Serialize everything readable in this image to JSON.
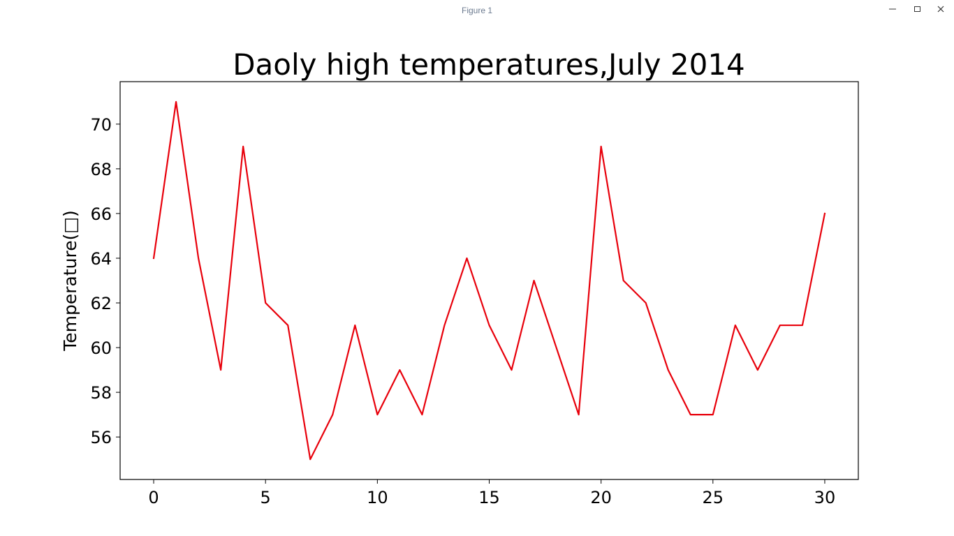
{
  "window": {
    "title": "Figure 1",
    "controls": {
      "minimize_icon": "minimize-icon",
      "maximize_icon": "maximize-icon",
      "close_icon": "close-icon"
    }
  },
  "chart_data": {
    "type": "line",
    "title": "Daoly high temperatures,July 2014",
    "xlabel": "",
    "ylabel": "Temperature(□)",
    "x": [
      0,
      1,
      2,
      3,
      4,
      5,
      6,
      7,
      8,
      9,
      10,
      11,
      12,
      13,
      14,
      15,
      16,
      17,
      18,
      19,
      20,
      21,
      22,
      23,
      24,
      25,
      26,
      27,
      28,
      29,
      30
    ],
    "series": [
      {
        "values": [
          64,
          71,
          64,
          59,
          69,
          62,
          61,
          55,
          57,
          61,
          57,
          59,
          57,
          61,
          64,
          61,
          59,
          63,
          60,
          57,
          69,
          63,
          62,
          59,
          57,
          57,
          61,
          59,
          61,
          61,
          66
        ],
        "color": "#e8000b"
      }
    ],
    "xlim": [
      -1.5,
      31.5
    ],
    "ylim": [
      54.1,
      71.9
    ],
    "xticks": [
      0,
      5,
      10,
      15,
      20,
      25,
      30
    ],
    "yticks": [
      56,
      58,
      60,
      62,
      64,
      66,
      68,
      70
    ],
    "grid": false,
    "legend": false
  }
}
